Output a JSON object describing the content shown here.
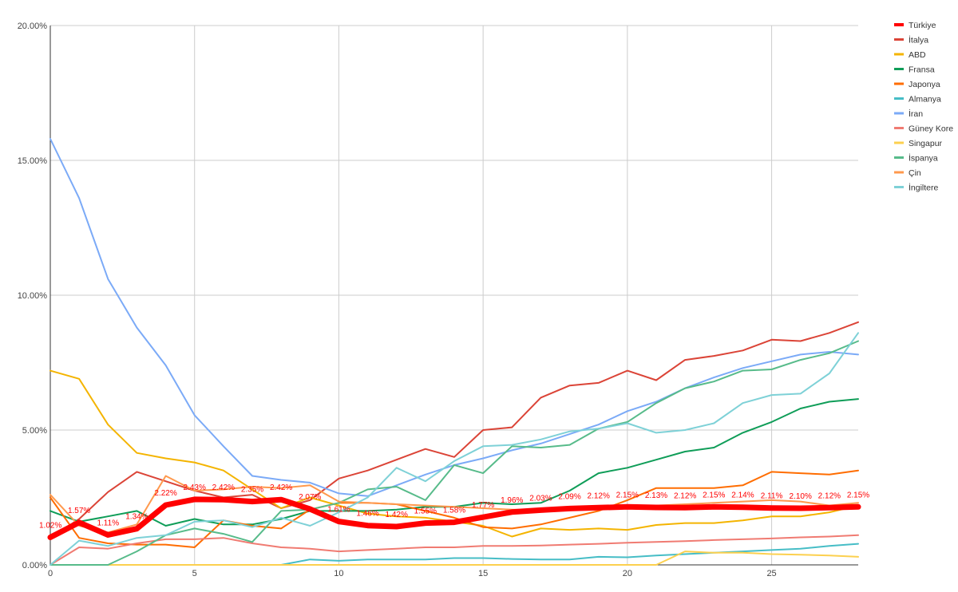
{
  "chart_data": {
    "type": "line",
    "title": "",
    "xlabel": "",
    "ylabel": "",
    "x": [
      0,
      1,
      2,
      3,
      4,
      5,
      6,
      7,
      8,
      9,
      10,
      11,
      12,
      13,
      14,
      15,
      16,
      17,
      18,
      19,
      20,
      21,
      22,
      23,
      24,
      25,
      26,
      27,
      28
    ],
    "xlim": [
      0,
      28
    ],
    "ylim": [
      0,
      20
    ],
    "x_ticks": [
      "0",
      "5",
      "10",
      "15",
      "20",
      "25"
    ],
    "x_tick_values": [
      0,
      5,
      10,
      15,
      20,
      25
    ],
    "y_ticks": [
      "0.00%",
      "5.00%",
      "10.00%",
      "15.00%",
      "20.00%"
    ],
    "y_tick_values": [
      0,
      5,
      10,
      15,
      20
    ],
    "grid": true,
    "legend_position": "right",
    "series": [
      {
        "name": "Türkiye",
        "color": "#ff0000",
        "highlight": true,
        "values": [
          1.02,
          1.57,
          1.11,
          1.34,
          2.22,
          2.43,
          2.42,
          2.35,
          2.42,
          2.07,
          1.61,
          1.46,
          1.42,
          1.55,
          1.58,
          1.77,
          1.96,
          2.03,
          2.09,
          2.12,
          2.15,
          2.13,
          2.12,
          2.15,
          2.14,
          2.11,
          2.1,
          2.12,
          2.15
        ]
      },
      {
        "name": "İtalya",
        "color": "#db4437",
        "values": [
          1.0,
          1.7,
          2.7,
          3.45,
          3.1,
          2.75,
          2.5,
          2.6,
          2.1,
          2.4,
          3.2,
          3.5,
          3.9,
          4.3,
          4.0,
          5.0,
          5.1,
          6.2,
          6.65,
          6.75,
          7.2,
          6.85,
          7.6,
          7.75,
          7.95,
          8.35,
          8.3,
          8.6,
          9.0
        ]
      },
      {
        "name": "ABD",
        "color": "#f4b400",
        "values": [
          7.2,
          6.9,
          5.2,
          4.15,
          3.95,
          3.8,
          3.5,
          2.8,
          2.1,
          2.5,
          2.2,
          1.9,
          1.8,
          1.75,
          1.6,
          1.45,
          1.05,
          1.35,
          1.3,
          1.35,
          1.3,
          1.48,
          1.55,
          1.55,
          1.65,
          1.8,
          1.8,
          1.95,
          2.2
        ]
      },
      {
        "name": "Fransa",
        "color": "#0f9d58",
        "values": [
          2.0,
          1.6,
          1.8,
          2.0,
          1.45,
          1.7,
          1.5,
          1.5,
          1.7,
          2.0,
          2.0,
          2.0,
          2.05,
          2.15,
          2.15,
          2.3,
          2.25,
          2.3,
          2.75,
          3.4,
          3.6,
          3.9,
          4.2,
          4.35,
          4.9,
          5.3,
          5.8,
          6.05,
          6.15
        ]
      },
      {
        "name": "Japonya",
        "color": "#ff6d01",
        "values": [
          2.5,
          1.0,
          0.8,
          0.75,
          0.75,
          0.65,
          1.65,
          1.45,
          1.35,
          2.05,
          2.3,
          2.3,
          2.25,
          2.0,
          1.75,
          1.4,
          1.35,
          1.5,
          1.75,
          2.0,
          2.4,
          2.85,
          2.85,
          2.85,
          2.95,
          3.45,
          3.4,
          3.35,
          3.5
        ]
      },
      {
        "name": "Almanya",
        "color": "#46bdc6",
        "values": [
          0,
          0,
          0,
          0,
          0,
          0,
          0,
          0,
          0,
          0.2,
          0.15,
          0.2,
          0.2,
          0.2,
          0.25,
          0.25,
          0.22,
          0.2,
          0.2,
          0.3,
          0.28,
          0.35,
          0.4,
          0.45,
          0.5,
          0.55,
          0.6,
          0.7,
          0.78
        ]
      },
      {
        "name": "İran",
        "color": "#7baaf7",
        "values": [
          15.8,
          13.6,
          10.6,
          8.8,
          7.4,
          5.55,
          4.4,
          3.3,
          3.15,
          3.05,
          2.65,
          2.55,
          2.95,
          3.35,
          3.7,
          3.95,
          4.25,
          4.5,
          4.85,
          5.2,
          5.7,
          6.05,
          6.55,
          6.95,
          7.3,
          7.55,
          7.8,
          7.9,
          7.8
        ]
      },
      {
        "name": "Güney Kore",
        "color": "#f07b72",
        "values": [
          0,
          0.65,
          0.6,
          0.8,
          0.95,
          0.95,
          1.0,
          0.8,
          0.65,
          0.6,
          0.5,
          0.55,
          0.6,
          0.65,
          0.65,
          0.7,
          0.7,
          0.72,
          0.75,
          0.78,
          0.82,
          0.85,
          0.88,
          0.92,
          0.95,
          0.98,
          1.02,
          1.05,
          1.1
        ]
      },
      {
        "name": "Singapur",
        "color": "#fcd04f",
        "values": [
          0,
          0,
          0,
          0,
          0,
          0,
          0,
          0,
          0,
          0,
          0,
          0,
          0,
          0,
          0,
          0,
          0,
          0,
          0,
          0,
          0,
          0,
          0.5,
          0.45,
          0.45,
          0.4,
          0.38,
          0.35,
          0.3
        ]
      },
      {
        "name": "İspanya",
        "color": "#57bb8a",
        "values": [
          0,
          0,
          0,
          0.5,
          1.1,
          1.35,
          1.15,
          0.85,
          2.0,
          2.05,
          2.3,
          2.8,
          2.9,
          2.4,
          3.7,
          3.4,
          4.4,
          4.35,
          4.45,
          5.05,
          5.3,
          6.0,
          6.55,
          6.8,
          7.2,
          7.25,
          7.6,
          7.85,
          8.3
        ]
      },
      {
        "name": "Çin",
        "color": "#ff994d",
        "values": [
          2.6,
          1.45,
          1.2,
          1.5,
          3.3,
          2.75,
          2.8,
          2.9,
          2.85,
          2.95,
          2.35,
          2.3,
          2.25,
          2.2,
          2.15,
          2.1,
          2.05,
          2.05,
          2.1,
          2.12,
          2.15,
          2.2,
          2.25,
          2.3,
          2.35,
          2.4,
          2.35,
          2.2,
          2.3
        ]
      },
      {
        "name": "İngiltere",
        "color": "#7ed1d7",
        "values": [
          0,
          0.9,
          0.7,
          1.0,
          1.1,
          1.6,
          1.65,
          1.4,
          1.75,
          1.45,
          1.95,
          2.5,
          3.6,
          3.1,
          3.85,
          4.4,
          4.45,
          4.65,
          4.95,
          5.05,
          5.25,
          4.9,
          5.0,
          5.25,
          6.0,
          6.3,
          6.35,
          7.1,
          8.6
        ]
      }
    ],
    "data_labels": {
      "series": "Türkiye",
      "values": [
        "1.02%",
        "1.57%",
        "1.11%",
        "1.34%",
        "2.22%",
        "2.43%",
        "2.42%",
        "2.35%",
        "2.42%",
        "2.07%",
        "1.61%",
        "1.46%",
        "1.42%",
        "1.55%",
        "1.58%",
        "1.77%",
        "1.96%",
        "2.03%",
        "2.09%",
        "2.12%",
        "2.15%",
        "2.13%",
        "2.12%",
        "2.15%",
        "2.14%",
        "2.11%",
        "2.10%",
        "2.12%",
        "2.15%"
      ]
    }
  }
}
